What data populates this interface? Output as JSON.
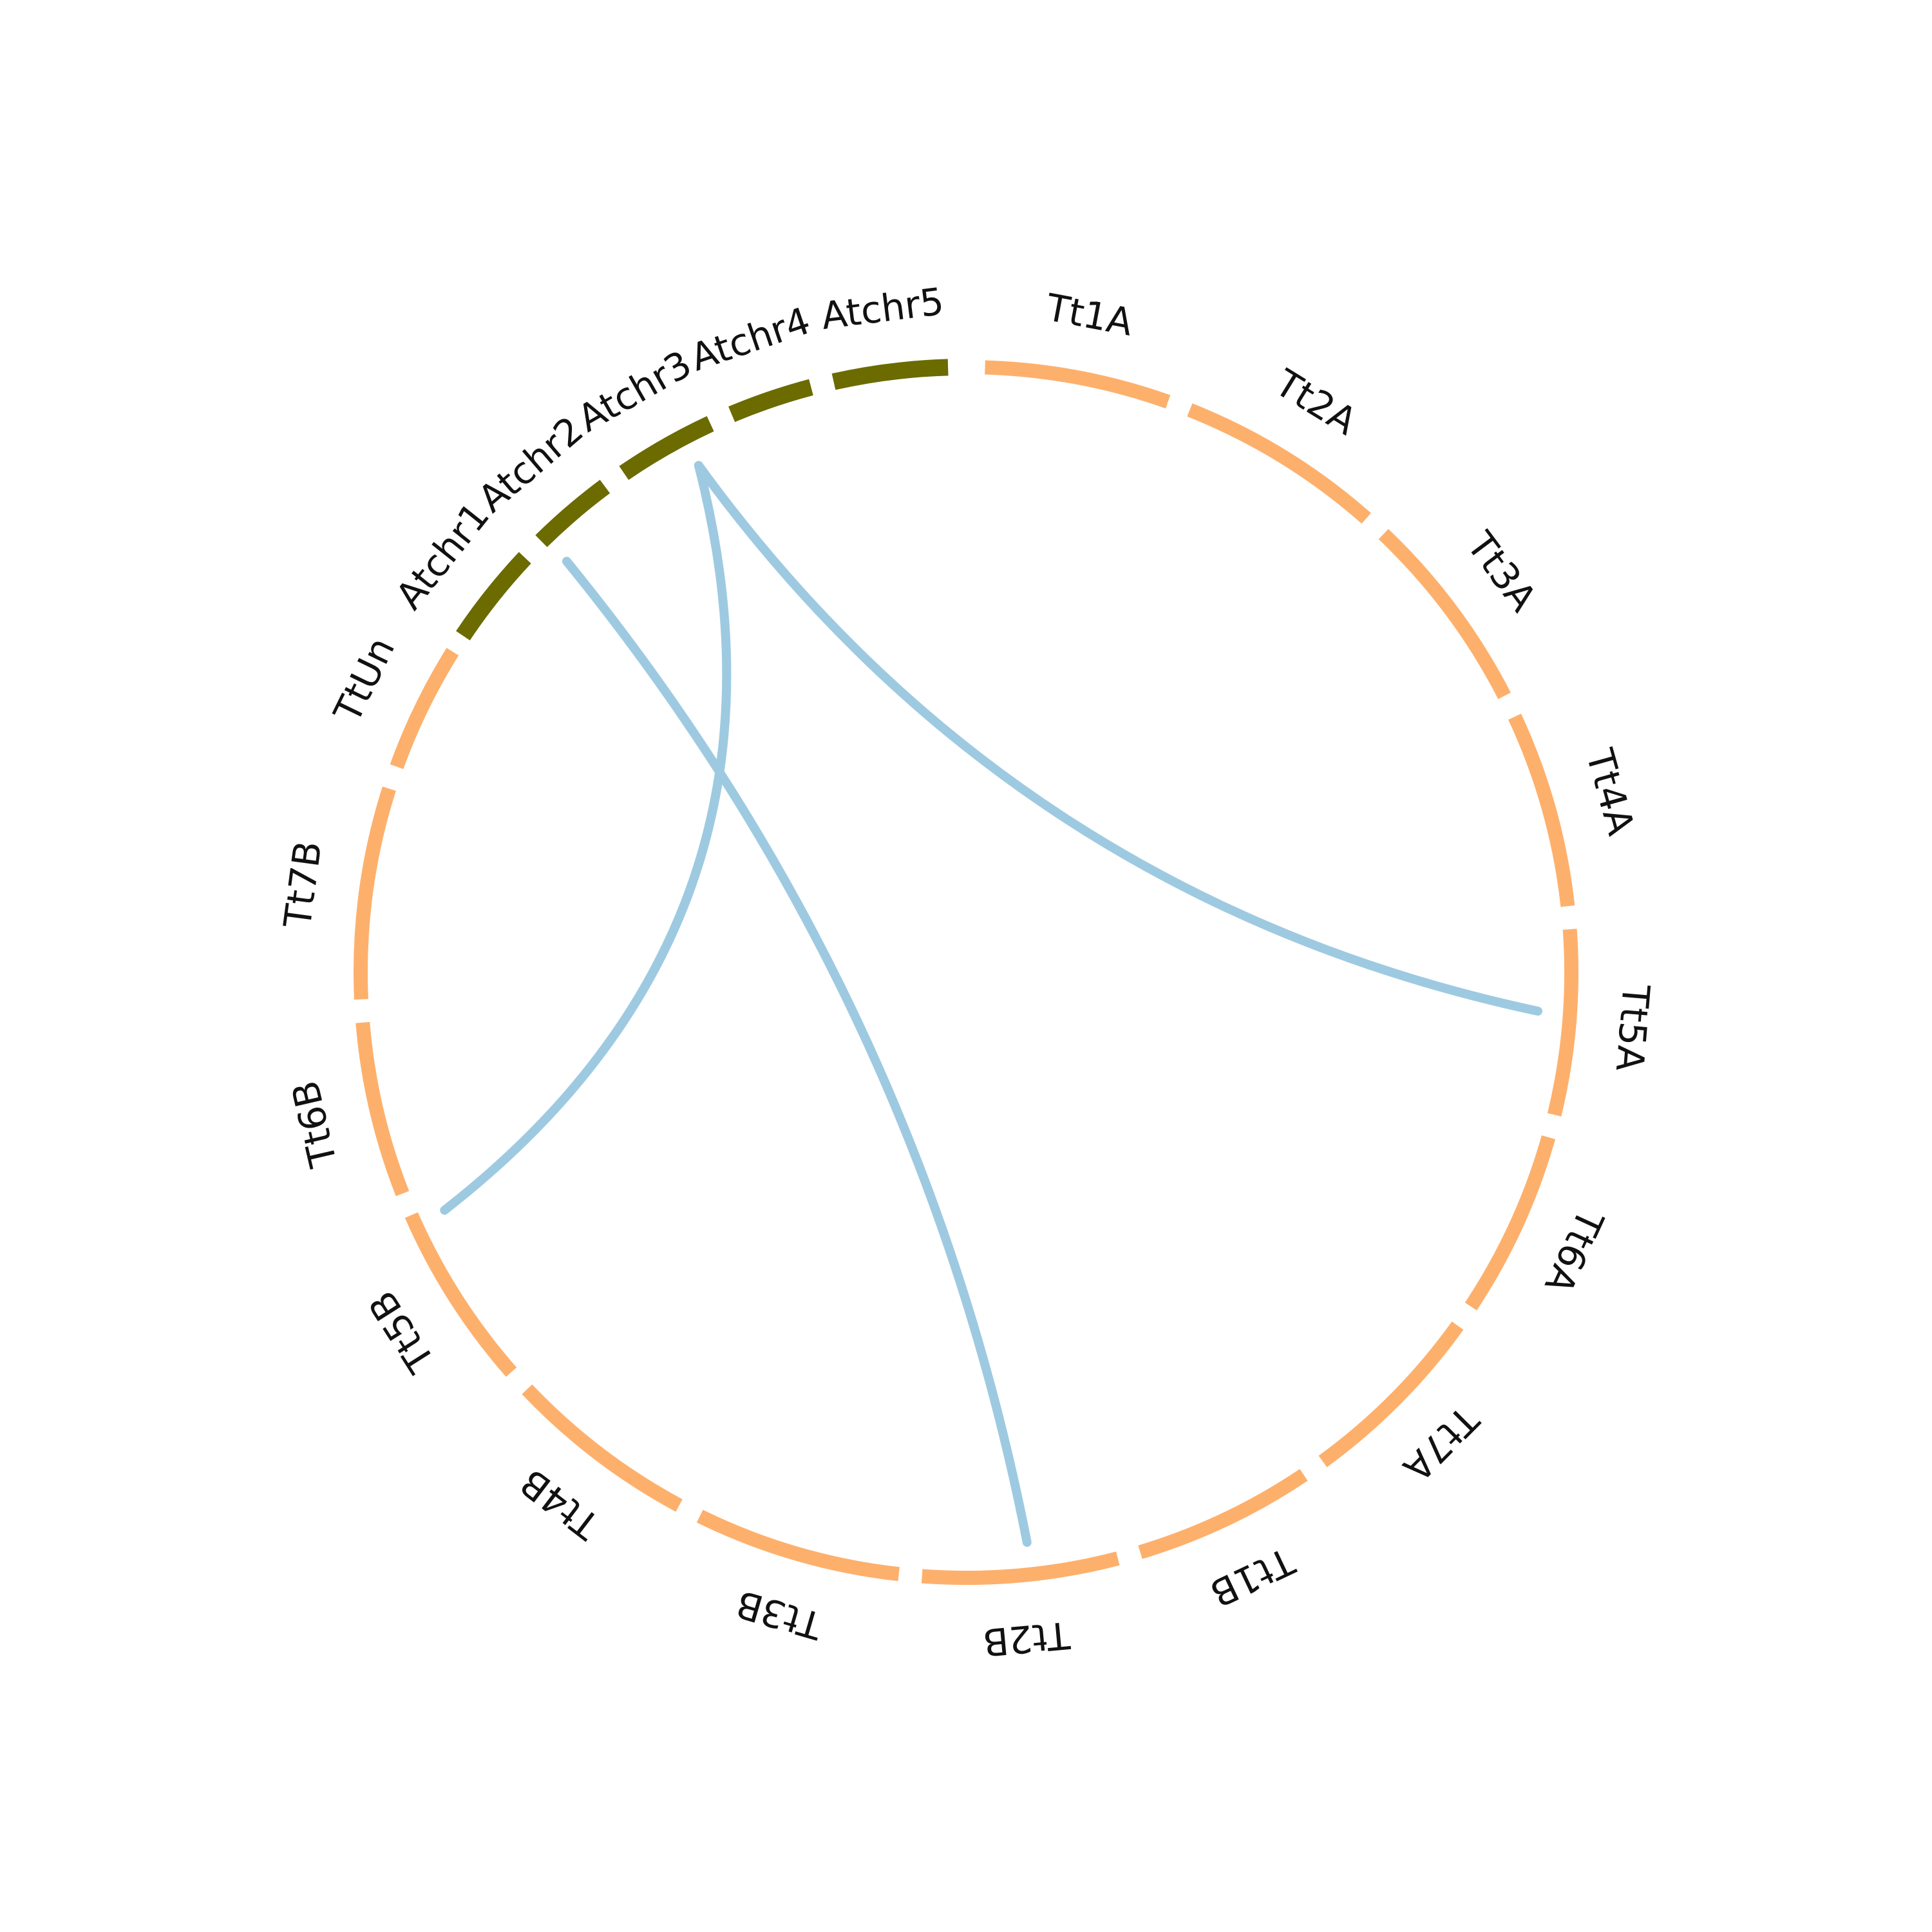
{
  "chart_data": {
    "type": "chord",
    "segments": [
      {
        "name": "Atchr1",
        "color": "#6b6b00"
      },
      {
        "name": "Atchr2",
        "color": "#6b6b00"
      },
      {
        "name": "Atchr3",
        "color": "#6b6b00"
      },
      {
        "name": "Atchr4",
        "color": "#6b6b00"
      },
      {
        "name": "Atchr5",
        "color": "#6b6b00"
      },
      {
        "name": "Tt1A",
        "color": "#fdb06c"
      },
      {
        "name": "Tt2A",
        "color": "#fdb06c"
      },
      {
        "name": "Tt3A",
        "color": "#fdb06c"
      },
      {
        "name": "Tt4A",
        "color": "#fdb06c"
      },
      {
        "name": "Tt5A",
        "color": "#fdb06c"
      },
      {
        "name": "Tt6A",
        "color": "#fdb06c"
      },
      {
        "name": "Tt7A",
        "color": "#fdb06c"
      },
      {
        "name": "Tt1B",
        "color": "#fdb06c"
      },
      {
        "name": "Tt2B",
        "color": "#fdb06c"
      },
      {
        "name": "Tt3B",
        "color": "#fdb06c"
      },
      {
        "name": "Tt4B",
        "color": "#fdb06c"
      },
      {
        "name": "Tt5B",
        "color": "#fdb06c"
      },
      {
        "name": "Tt6B",
        "color": "#fdb06c"
      },
      {
        "name": "Tt7B",
        "color": "#fdb06c"
      },
      {
        "name": "TtUn",
        "color": "#fdb06c"
      }
    ],
    "links": [
      {
        "from": "Atchr2",
        "to": "Tt2B",
        "color": "#9ecae1"
      },
      {
        "from": "Atchr3",
        "to": "Tt5A",
        "color": "#9ecae1"
      },
      {
        "from": "Atchr3",
        "to": "Tt5B",
        "color": "#9ecae1"
      }
    ]
  }
}
